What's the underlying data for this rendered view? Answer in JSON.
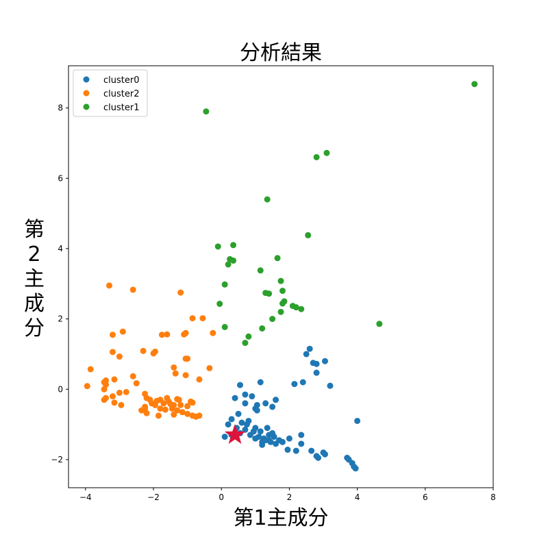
{
  "chart_data": {
    "type": "scatter",
    "title": "分析結果",
    "xlabel": "第1主成分",
    "ylabel": "第2主成分",
    "xlim": [
      -4.5,
      8
    ],
    "ylim": [
      -2.8,
      9.2
    ],
    "xticks": [
      -4,
      -2,
      0,
      2,
      4,
      6,
      8
    ],
    "yticks": [
      -2,
      0,
      2,
      4,
      6,
      8
    ],
    "grid": false,
    "legend_position": "top-left",
    "series": [
      {
        "name": "cluster0",
        "color": "#1f77b4",
        "points": [
          [
            0.55,
            0.12
          ],
          [
            1.15,
            0.2
          ],
          [
            0.7,
            -0.15
          ],
          [
            0.9,
            -0.2
          ],
          [
            1.3,
            -0.4
          ],
          [
            1.6,
            -0.3
          ],
          [
            0.4,
            -0.25
          ],
          [
            0.7,
            -0.4
          ],
          [
            1.05,
            -0.45
          ],
          [
            1.5,
            -0.5
          ],
          [
            1.0,
            -0.55
          ],
          [
            1.05,
            -0.6
          ],
          [
            0.5,
            -0.7
          ],
          [
            0.3,
            -0.85
          ],
          [
            0.2,
            -1.0
          ],
          [
            0.6,
            -0.95
          ],
          [
            0.8,
            -0.9
          ],
          [
            0.45,
            -1.1
          ],
          [
            0.7,
            -1.15
          ],
          [
            1.0,
            -1.1
          ],
          [
            1.15,
            -1.2
          ],
          [
            1.35,
            -1.1
          ],
          [
            1.5,
            -1.25
          ],
          [
            0.3,
            -1.3
          ],
          [
            0.1,
            -1.35
          ],
          [
            0.85,
            -1.3
          ],
          [
            1.0,
            -1.4
          ],
          [
            1.1,
            -1.35
          ],
          [
            1.25,
            -1.4
          ],
          [
            1.4,
            -1.45
          ],
          [
            1.55,
            -1.35
          ],
          [
            0.95,
            -1.2
          ],
          [
            1.2,
            -1.5
          ],
          [
            1.3,
            -1.45
          ],
          [
            1.45,
            -1.5
          ],
          [
            1.6,
            -1.55
          ],
          [
            1.8,
            -1.5
          ],
          [
            1.2,
            -1.58
          ],
          [
            1.7,
            -1.45
          ],
          [
            2.0,
            -1.4
          ],
          [
            1.95,
            -1.72
          ],
          [
            2.2,
            -1.75
          ],
          [
            2.35,
            -1.3
          ],
          [
            2.35,
            -1.55
          ],
          [
            2.65,
            -1.75
          ],
          [
            2.8,
            -1.9
          ],
          [
            2.85,
            -1.95
          ],
          [
            3.0,
            -1.8
          ],
          [
            3.05,
            -1.85
          ],
          [
            3.7,
            -1.95
          ],
          [
            3.75,
            -2.0
          ],
          [
            3.85,
            -2.1
          ],
          [
            3.9,
            -2.2
          ],
          [
            3.95,
            -2.25
          ],
          [
            4.0,
            -0.9
          ],
          [
            2.15,
            0.15
          ],
          [
            2.4,
            0.2
          ],
          [
            3.2,
            0.1
          ],
          [
            2.5,
            1.0
          ],
          [
            2.6,
            1.15
          ],
          [
            2.7,
            0.75
          ],
          [
            2.8,
            0.72
          ],
          [
            2.8,
            0.47
          ],
          [
            3.05,
            0.8
          ],
          [
            0.55,
            -1.25
          ],
          [
            0.75,
            -1.0
          ],
          [
            1.4,
            -1.3
          ]
        ]
      },
      {
        "name": "cluster2",
        "color": "#ff7f0e",
        "points": [
          [
            -3.3,
            2.95
          ],
          [
            -2.6,
            2.83
          ],
          [
            -1.2,
            2.75
          ],
          [
            -0.55,
            2.02
          ],
          [
            -0.85,
            2.02
          ],
          [
            -2.9,
            1.64
          ],
          [
            -3.2,
            1.55
          ],
          [
            -1.75,
            1.55
          ],
          [
            -1.6,
            1.56
          ],
          [
            -1.05,
            1.6
          ],
          [
            -1.1,
            1.56
          ],
          [
            -0.25,
            1.6
          ],
          [
            -3.2,
            1.06
          ],
          [
            -2.3,
            1.09
          ],
          [
            -1.95,
            1.07
          ],
          [
            -2.0,
            1.02
          ],
          [
            -3.0,
            0.93
          ],
          [
            -1.0,
            0.87
          ],
          [
            -1.05,
            0.87
          ],
          [
            -0.35,
            0.6
          ],
          [
            -1.4,
            0.62
          ],
          [
            -1.35,
            0.45
          ],
          [
            -3.85,
            0.57
          ],
          [
            -2.6,
            0.37
          ],
          [
            -1.05,
            0.4
          ],
          [
            -0.65,
            0.28
          ],
          [
            -3.45,
            0.2
          ],
          [
            -3.4,
            0.25
          ],
          [
            -3.15,
            0.28
          ],
          [
            -2.5,
            0.17
          ],
          [
            -3.4,
            0.13
          ],
          [
            -3.45,
            0.0
          ],
          [
            -3.95,
            0.09
          ],
          [
            -3.0,
            -0.1
          ],
          [
            -2.8,
            -0.08
          ],
          [
            -2.25,
            -0.13
          ],
          [
            -3.2,
            -0.2
          ],
          [
            -2.2,
            -0.25
          ],
          [
            -3.4,
            -0.25
          ],
          [
            -3.45,
            -0.3
          ],
          [
            -3.15,
            -0.38
          ],
          [
            -2.95,
            -0.45
          ],
          [
            -2.1,
            -0.3
          ],
          [
            -1.8,
            -0.3
          ],
          [
            -1.6,
            -0.25
          ],
          [
            -1.3,
            -0.28
          ],
          [
            -1.25,
            -0.3
          ],
          [
            -0.9,
            -0.35
          ],
          [
            -0.85,
            -0.38
          ],
          [
            -1.95,
            -0.45
          ],
          [
            -1.7,
            -0.4
          ],
          [
            -1.5,
            -0.42
          ],
          [
            -1.4,
            -0.45
          ],
          [
            -1.2,
            -0.45
          ],
          [
            -1.0,
            -0.48
          ],
          [
            -2.25,
            -0.5
          ],
          [
            -2.35,
            -0.6
          ],
          [
            -2.2,
            -0.68
          ],
          [
            -1.8,
            -0.55
          ],
          [
            -1.65,
            -0.58
          ],
          [
            -1.45,
            -0.55
          ],
          [
            -1.3,
            -0.6
          ],
          [
            -1.15,
            -0.65
          ],
          [
            -1.0,
            -0.7
          ],
          [
            -0.85,
            -0.75
          ],
          [
            -0.75,
            -0.78
          ],
          [
            -0.65,
            -0.75
          ],
          [
            -1.85,
            -0.75
          ],
          [
            -1.4,
            -0.72
          ],
          [
            -2.05,
            -0.4
          ],
          [
            -1.9,
            -0.33
          ],
          [
            -1.55,
            -0.35
          ],
          [
            -2.25,
            -0.55
          ]
        ]
      },
      {
        "name": "cluster1",
        "color": "#2ca02c",
        "points": [
          [
            7.45,
            8.68
          ],
          [
            -0.45,
            7.9
          ],
          [
            2.8,
            6.6
          ],
          [
            3.1,
            6.72
          ],
          [
            1.35,
            5.4
          ],
          [
            2.55,
            4.38
          ],
          [
            -0.1,
            4.06
          ],
          [
            0.35,
            4.1
          ],
          [
            0.25,
            3.7
          ],
          [
            0.35,
            3.66
          ],
          [
            0.2,
            3.55
          ],
          [
            1.65,
            3.73
          ],
          [
            1.15,
            3.38
          ],
          [
            0.1,
            2.98
          ],
          [
            1.75,
            3.08
          ],
          [
            1.3,
            2.74
          ],
          [
            1.4,
            2.72
          ],
          [
            1.8,
            2.8
          ],
          [
            -0.05,
            2.43
          ],
          [
            1.85,
            2.5
          ],
          [
            1.8,
            2.44
          ],
          [
            2.1,
            2.37
          ],
          [
            2.2,
            2.33
          ],
          [
            2.35,
            2.28
          ],
          [
            1.75,
            2.2
          ],
          [
            1.5,
            2.0
          ],
          [
            0.1,
            1.77
          ],
          [
            1.2,
            1.73
          ],
          [
            0.8,
            1.5
          ],
          [
            0.7,
            1.32
          ],
          [
            4.65,
            1.86
          ]
        ]
      }
    ],
    "marker": {
      "shape": "star",
      "color": "#dc143c",
      "position": [
        0.4,
        -1.3
      ]
    }
  }
}
